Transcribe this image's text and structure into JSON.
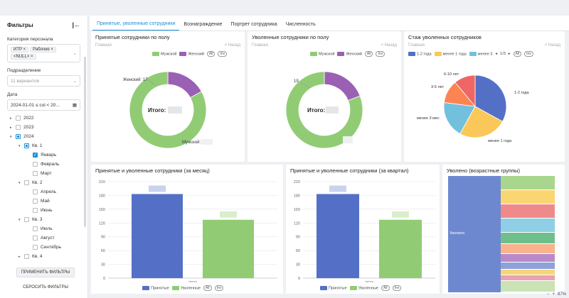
{
  "sidebar": {
    "title": "Фильтры",
    "collapse_icon": "collapse-left-icon",
    "category_label": "Категория персонала",
    "category_chips": [
      "ИТР",
      "Рабочие",
      "<NULL>"
    ],
    "department_label": "Подразделение",
    "department_placeholder": "11 вариантов",
    "date_label": "Дата",
    "date_value": "2024-01-01 ≤ col < 20...",
    "tree": [
      {
        "label": "2022",
        "level": 0,
        "arrow": "▸",
        "check": "none"
      },
      {
        "label": "2023",
        "level": 0,
        "arrow": "▸",
        "check": "none"
      },
      {
        "label": "2024",
        "level": 0,
        "arrow": "▾",
        "check": "partial"
      },
      {
        "label": "Кв. 1",
        "level": 1,
        "arrow": "▾",
        "check": "partial"
      },
      {
        "label": "Январь",
        "level": 2,
        "arrow": "",
        "check": "checked"
      },
      {
        "label": "Февраль",
        "level": 2,
        "arrow": "",
        "check": "none"
      },
      {
        "label": "Март",
        "level": 2,
        "arrow": "",
        "check": "none"
      },
      {
        "label": "Кв. 2",
        "level": 1,
        "arrow": "▾",
        "check": "none"
      },
      {
        "label": "Апрель",
        "level": 2,
        "arrow": "",
        "check": "none"
      },
      {
        "label": "Май",
        "level": 2,
        "arrow": "",
        "check": "none"
      },
      {
        "label": "Июнь",
        "level": 2,
        "arrow": "",
        "check": "none"
      },
      {
        "label": "Кв. 3",
        "level": 1,
        "arrow": "▾",
        "check": "none"
      },
      {
        "label": "Июль",
        "level": 2,
        "arrow": "",
        "check": "none"
      },
      {
        "label": "Август",
        "level": 2,
        "arrow": "",
        "check": "none"
      },
      {
        "label": "Сентябрь",
        "level": 2,
        "arrow": "",
        "check": "none"
      },
      {
        "label": "Кв. 4",
        "level": 1,
        "arrow": "▸",
        "check": "none"
      }
    ],
    "apply_label": "ПРИМЕНИТЬ ФИЛЬТРЫ",
    "reset_label": "СБРОСИТЬ ФИЛЬТРЫ"
  },
  "tabs": [
    "Принятые, уволенные сотрудники",
    "Вознаграждение",
    "Портрет сотрудника",
    "Численность"
  ],
  "common": {
    "crumb": "Главная",
    "back": "< Назад",
    "all": "All",
    "inv": "Inv",
    "total_label": "Итого:",
    "hired": "Принятые",
    "fired": "Уволенные",
    "male": "Мужской",
    "female": "Женский"
  },
  "colors": {
    "green": "#91cc75",
    "purple": "#9a60b4",
    "blue": "#5470c6",
    "yellow": "#fac858",
    "red": "#ee6666",
    "cyan": "#73c0de",
    "orange": "#fc8452",
    "accent": "#1d8fd6"
  },
  "cards": {
    "hired_gender_title": "Принятые сотрудники по полу",
    "fired_gender_title": "Уволенные сотрудники по полу",
    "tenure_title": "Стаж уволенных сотрудников",
    "monthly_title": "Принятые и уволенные сотрудники (за месяц)",
    "quarterly_title": "Принятые и уволенные сотрудники (за квартал)",
    "age_title": "Уволено (возрастные группы)",
    "tenure_page": "1/3",
    "age_main_label": "Уволено"
  },
  "chart_data": [
    {
      "type": "pie",
      "title": "Принятые сотрудники по полу",
      "slices": [
        {
          "label": "Мужской",
          "value": 83
        },
        {
          "label": "Женский",
          "value": 17
        }
      ],
      "labels": [
        "Женский: 17",
        "Мужской:"
      ]
    },
    {
      "type": "pie",
      "title": "Уволенные сотрудники по полу",
      "slices": [
        {
          "label": "Мужской",
          "value": 81
        },
        {
          "label": "Женский",
          "value": 19
        }
      ],
      "labels": [
        "19"
      ]
    },
    {
      "type": "pie",
      "title": "Стаж уволенных сотрудников",
      "legend": [
        "1-2 года",
        "менее 1 года",
        "менее 3"
      ],
      "slices": [
        {
          "label": "1-2 года",
          "value": 33
        },
        {
          "label": "менее 1 года",
          "value": 25
        },
        {
          "label": "менее 3 мес",
          "value": 19
        },
        {
          "label": "3-5 лет",
          "value": 12
        },
        {
          "label": "6-10 лет",
          "value": 11
        }
      ]
    },
    {
      "type": "bar",
      "title": "Принятые и уволенные сотрудники (за месяц)",
      "categories": [
        "2024"
      ],
      "series": [
        {
          "name": "Принятые",
          "values": [
            183
          ]
        },
        {
          "name": "Уволенные",
          "values": [
            127
          ]
        }
      ],
      "yticks": [
        0,
        30,
        60,
        90,
        120,
        150,
        180,
        210
      ],
      "ylim": [
        0,
        210
      ]
    },
    {
      "type": "bar",
      "title": "Принятые и уволенные сотрудники (за квартал)",
      "categories": [
        "2024"
      ],
      "series": [
        {
          "name": "Принятые",
          "values": [
            183
          ]
        },
        {
          "name": "Уволенные",
          "values": [
            127
          ]
        }
      ],
      "yticks": [
        0,
        30,
        60,
        90,
        120,
        150,
        180,
        210
      ],
      "ylim": [
        0,
        210
      ]
    }
  ],
  "status": {
    "zoom": "87%",
    "minus": "−",
    "plus": "+"
  }
}
